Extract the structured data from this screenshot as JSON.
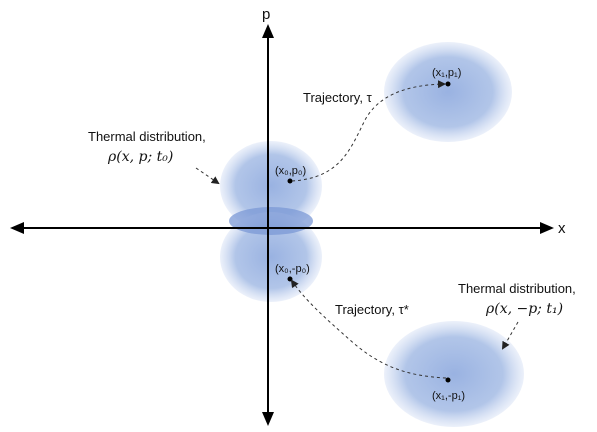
{
  "axes": {
    "x_label": "x",
    "y_label": "p"
  },
  "regions": {
    "top_right": {
      "label": "(x₁,p₁)"
    },
    "upper_center": {
      "label": "(x₀,p₀)"
    },
    "lower_center": {
      "label": "(x₀,-p₀)"
    },
    "bottom_right": {
      "label": "(x₁,-p₁)"
    }
  },
  "annotations": {
    "trajectory_top": "Trajectory, τ",
    "trajectory_bottom": "Trajectory, τ*",
    "thermal_left_title": "Thermal distribution,",
    "thermal_left_formula": "ρ(x, p; t₀)",
    "thermal_right_title": "Thermal distribution,",
    "thermal_right_formula": "ρ(x, −p; t₁)"
  },
  "colors": {
    "blob_core": "#94aee0",
    "blob_edge": "#dfe7f7",
    "overlap": "#6f8fd2",
    "axis": "#000000"
  }
}
